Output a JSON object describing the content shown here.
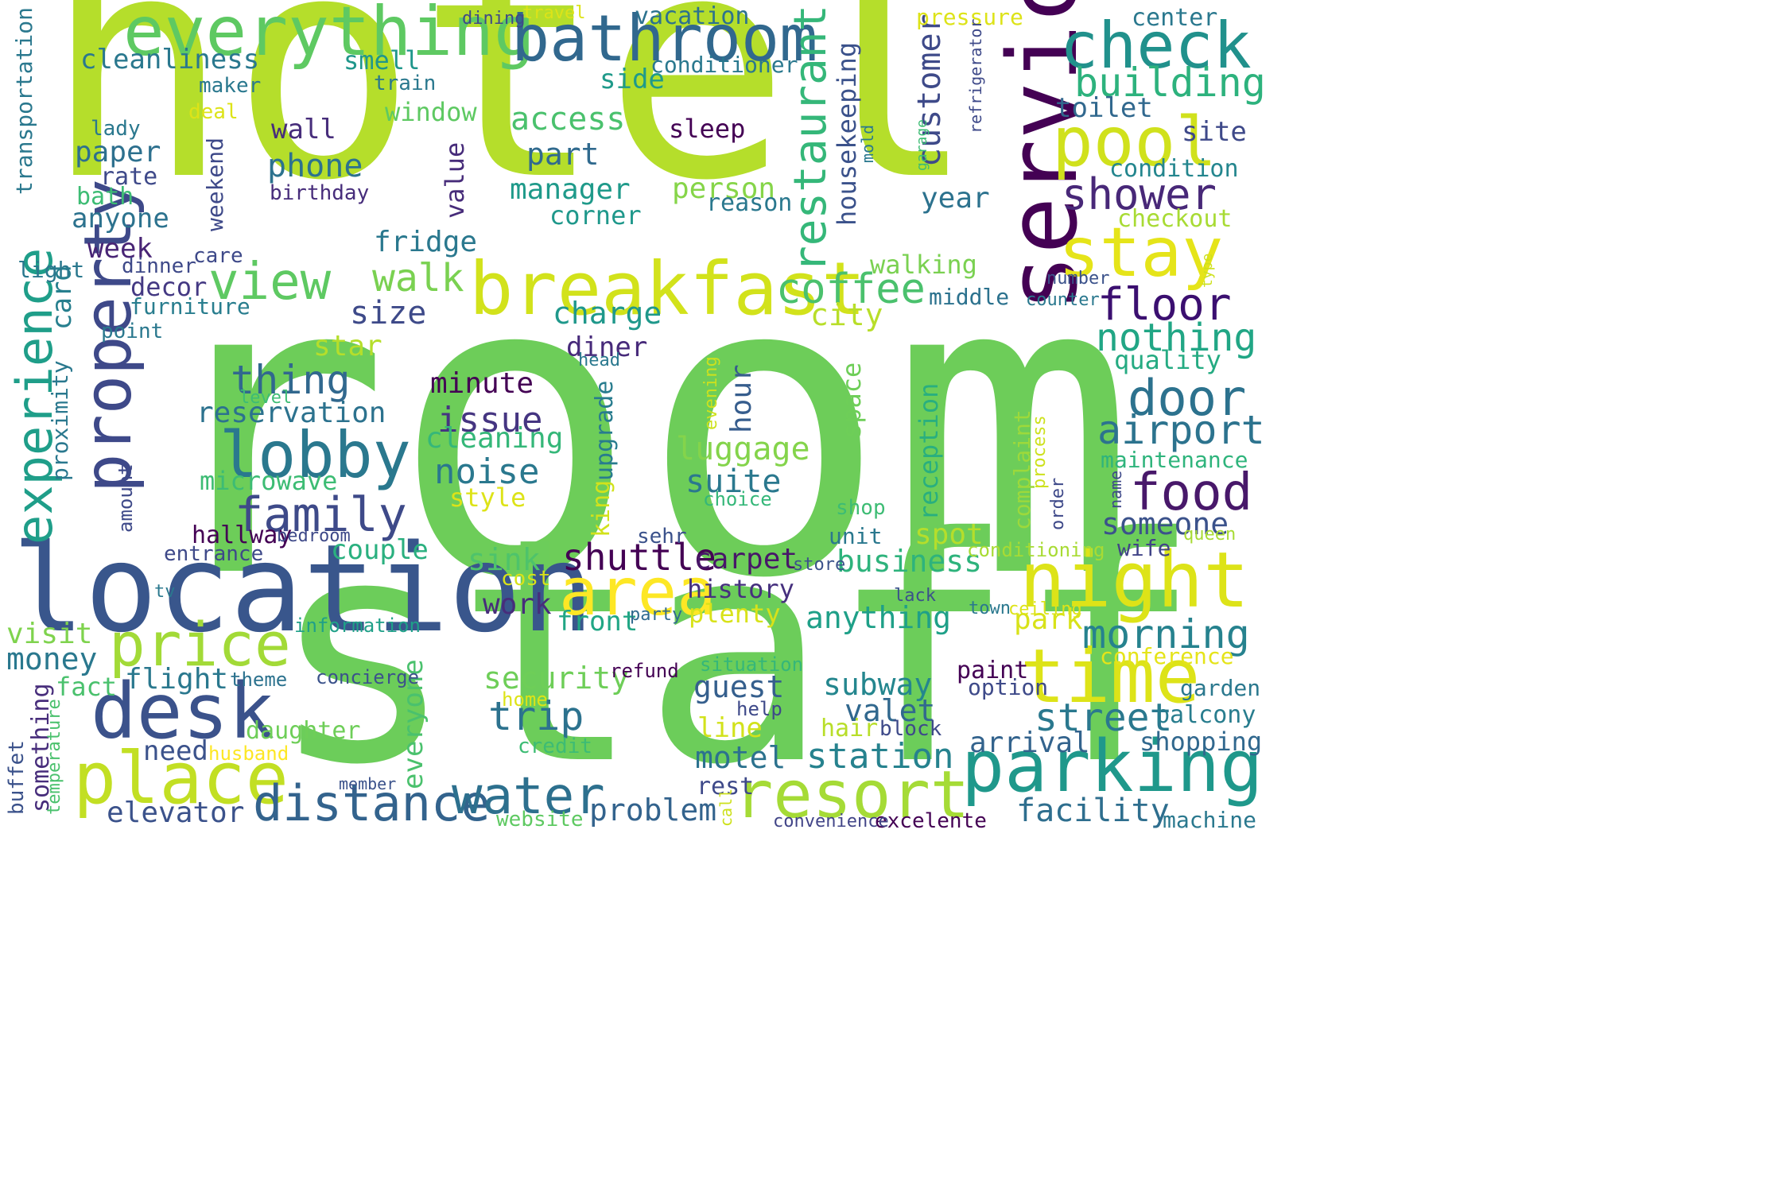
{
  "words": [
    {
      "text": "room",
      "color": "#6dcd59"
    },
    {
      "text": "hotel",
      "color": "#b5de2b"
    },
    {
      "text": "staff",
      "color": "#6ccd5a"
    },
    {
      "text": "location",
      "color": "#39568c"
    },
    {
      "text": "service",
      "color": "#440154"
    },
    {
      "text": "breakfast",
      "color": "#d2e21b"
    },
    {
      "text": "everything",
      "color": "#5ec962"
    },
    {
      "text": "bathroom",
      "color": "#31688e"
    },
    {
      "text": "check",
      "color": "#21918c"
    },
    {
      "text": "pool",
      "color": "#d0e11c"
    },
    {
      "text": "stay",
      "color": "#e5e419"
    },
    {
      "text": "night",
      "color": "#dde318"
    },
    {
      "text": "time",
      "color": "#dde318"
    },
    {
      "text": "parking",
      "color": "#1f988b"
    },
    {
      "text": "resort",
      "color": "#a5db36"
    },
    {
      "text": "area",
      "color": "#fde725"
    },
    {
      "text": "desk",
      "color": "#3b528b"
    },
    {
      "text": "place",
      "color": "#c2df23"
    },
    {
      "text": "price",
      "color": "#a2da37"
    },
    {
      "text": "property",
      "color": "#3e4989"
    },
    {
      "text": "experience",
      "color": "#1f9e89"
    },
    {
      "text": "restaurant",
      "color": "#35b779"
    },
    {
      "text": "view",
      "color": "#5ec962"
    },
    {
      "text": "lobby",
      "color": "#2a788e"
    },
    {
      "text": "family",
      "color": "#3e4a89"
    },
    {
      "text": "distance",
      "color": "#33638d"
    },
    {
      "text": "water",
      "color": "#2d708e"
    },
    {
      "text": "shuttle",
      "color": "#440154"
    },
    {
      "text": "floor",
      "color": "#3b0f70"
    },
    {
      "text": "food",
      "color": "#48186a"
    },
    {
      "text": "door",
      "color": "#2c728e"
    },
    {
      "text": "airport",
      "color": "#2c738e"
    },
    {
      "text": "building",
      "color": "#2db27d"
    },
    {
      "text": "shower",
      "color": "#482878"
    },
    {
      "text": "coffee",
      "color": "#4ac16d"
    },
    {
      "text": "thing",
      "color": "#31688e"
    },
    {
      "text": "nothing",
      "color": "#21a685"
    },
    {
      "text": "morning",
      "color": "#26828e"
    },
    {
      "text": "street",
      "color": "#2a788e"
    },
    {
      "text": "station",
      "color": "#26828e"
    },
    {
      "text": "trip",
      "color": "#2c728e"
    },
    {
      "text": "customer",
      "color": "#3e4a89"
    },
    {
      "text": "housekeeping",
      "color": "#3b528b"
    },
    {
      "text": "reservation",
      "color": "#2c728e"
    },
    {
      "text": "walk",
      "color": "#7ad151"
    },
    {
      "text": "access",
      "color": "#4ac16d"
    },
    {
      "text": "manager",
      "color": "#1f9a8a"
    },
    {
      "text": "phone",
      "color": "#2c728e"
    },
    {
      "text": "cleanliness",
      "color": "#2a788e"
    },
    {
      "text": "smell",
      "color": "#1f968b"
    },
    {
      "text": "window",
      "color": "#5ec962"
    },
    {
      "text": "side",
      "color": "#1f9a8a"
    },
    {
      "text": "toilet",
      "color": "#31688e"
    },
    {
      "text": "part",
      "color": "#306a8e"
    },
    {
      "text": "wall",
      "color": "#472d7b"
    },
    {
      "text": "paper",
      "color": "#2d708e"
    },
    {
      "text": "person",
      "color": "#86d549"
    },
    {
      "text": "site",
      "color": "#3e4989"
    },
    {
      "text": "condition",
      "color": "#24868e"
    },
    {
      "text": "year",
      "color": "#2c728e"
    },
    {
      "text": "value",
      "color": "#472c7a"
    },
    {
      "text": "fridge",
      "color": "#2a788e"
    },
    {
      "text": "size",
      "color": "#3e4a89"
    },
    {
      "text": "charge",
      "color": "#1f988b"
    },
    {
      "text": "city",
      "color": "#b8de29"
    },
    {
      "text": "walking",
      "color": "#7ad151"
    },
    {
      "text": "checkout",
      "color": "#a8db34"
    },
    {
      "text": "minute",
      "color": "#440154"
    },
    {
      "text": "issue",
      "color": "#453581"
    },
    {
      "text": "noise",
      "color": "#2a788e"
    },
    {
      "text": "cleaning",
      "color": "#35b779"
    },
    {
      "text": "luggage",
      "color": "#84d44b"
    },
    {
      "text": "suite",
      "color": "#2a788e"
    },
    {
      "text": "hour",
      "color": "#365d8d"
    },
    {
      "text": "space",
      "color": "#6ece58"
    },
    {
      "text": "microwave",
      "color": "#3dbc74"
    },
    {
      "text": "upgrade",
      "color": "#287c8e"
    },
    {
      "text": "king",
      "color": "#d2e21b"
    },
    {
      "text": "star",
      "color": "#b5de2b"
    },
    {
      "text": "diner",
      "color": "#472a7a"
    },
    {
      "text": "quality",
      "color": "#25ab82"
    },
    {
      "text": "someone",
      "color": "#3b528b"
    },
    {
      "text": "maintenance",
      "color": "#2fb47c"
    },
    {
      "text": "reception",
      "color": "#29af7f"
    },
    {
      "text": "complaint",
      "color": "#9dd93b"
    },
    {
      "text": "wife",
      "color": "#414487"
    },
    {
      "text": "week",
      "color": "#482475"
    },
    {
      "text": "decor",
      "color": "#443983"
    },
    {
      "text": "card",
      "color": "#277f8e"
    },
    {
      "text": "furniture",
      "color": "#287d8e"
    },
    {
      "text": "couple",
      "color": "#2ab07f"
    },
    {
      "text": "hallway",
      "color": "#440154"
    },
    {
      "text": "sink",
      "color": "#4ec36b"
    },
    {
      "text": "carpet",
      "color": "#481769"
    },
    {
      "text": "business",
      "color": "#2eb37c"
    },
    {
      "text": "spot",
      "color": "#b5de2b"
    },
    {
      "text": "history",
      "color": "#46307e"
    },
    {
      "text": "anything",
      "color": "#1fa088"
    },
    {
      "text": "park",
      "color": "#d8e219"
    },
    {
      "text": "plenty",
      "color": "#d8e219"
    },
    {
      "text": "front",
      "color": "#21a685"
    },
    {
      "text": "work",
      "color": "#472d7b"
    },
    {
      "text": "security",
      "color": "#6ece58"
    },
    {
      "text": "subway",
      "color": "#24868e"
    },
    {
      "text": "guest",
      "color": "#355f8d"
    },
    {
      "text": "valet",
      "color": "#31688e"
    },
    {
      "text": "line",
      "color": "#d2e21b"
    },
    {
      "text": "motel",
      "color": "#2c728e"
    },
    {
      "text": "arrival",
      "color": "#33638d"
    },
    {
      "text": "shopping",
      "color": "#31688e"
    },
    {
      "text": "balcony",
      "color": "#287d8e"
    },
    {
      "text": "garden",
      "color": "#2a788e"
    },
    {
      "text": "facility",
      "color": "#2e6e8e"
    },
    {
      "text": "problem",
      "color": "#33638d"
    },
    {
      "text": "elevator",
      "color": "#3b528b"
    },
    {
      "text": "visit",
      "color": "#7fd34e"
    },
    {
      "text": "money",
      "color": "#2a788e"
    },
    {
      "text": "flight",
      "color": "#2a788e"
    },
    {
      "text": "need",
      "color": "#3b528b"
    },
    {
      "text": "daughter",
      "color": "#6ece58"
    },
    {
      "text": "something",
      "color": "#472d7b"
    },
    {
      "text": "everyone",
      "color": "#4ac16d"
    },
    {
      "text": "fact",
      "color": "#4ac16d"
    },
    {
      "text": "hair",
      "color": "#b8de29"
    },
    {
      "text": "paint",
      "color": "#440154"
    },
    {
      "text": "option",
      "color": "#3e4a89"
    },
    {
      "text": "conference",
      "color": "#e5e419"
    },
    {
      "text": "machine",
      "color": "#2a788e"
    },
    {
      "text": "block",
      "color": "#3e4a89"
    },
    {
      "text": "excelente",
      "color": "#440154"
    },
    {
      "text": "convenience",
      "color": "#414487"
    },
    {
      "text": "website",
      "color": "#5ec962"
    },
    {
      "text": "credit",
      "color": "#3dbc74"
    },
    {
      "text": "rest",
      "color": "#3e4989"
    },
    {
      "text": "call",
      "color": "#cde11d"
    },
    {
      "text": "member",
      "color": "#3b528b"
    },
    {
      "text": "buffet",
      "color": "#3b528b"
    },
    {
      "text": "temperature",
      "color": "#4ac16d"
    },
    {
      "text": "husband",
      "color": "#fde725"
    },
    {
      "text": "theme",
      "color": "#2c728e"
    },
    {
      "text": "concierge",
      "color": "#3b528b"
    },
    {
      "text": "refund",
      "color": "#440154"
    },
    {
      "text": "situation",
      "color": "#35b779"
    },
    {
      "text": "help",
      "color": "#3e4989"
    },
    {
      "text": "home",
      "color": "#dde318"
    },
    {
      "text": "party",
      "color": "#306a8e"
    },
    {
      "text": "lack",
      "color": "#3b528b"
    },
    {
      "text": "town",
      "color": "#2a788e"
    },
    {
      "text": "ceiling",
      "color": "#dde318"
    },
    {
      "text": "information",
      "color": "#1fa088"
    },
    {
      "text": "cost",
      "color": "#d8e219"
    },
    {
      "text": "tv",
      "color": "#2a788e"
    },
    {
      "text": "entrance",
      "color": "#3e4989"
    },
    {
      "text": "bedroom",
      "color": "#3e4989"
    },
    {
      "text": "sehr",
      "color": "#3b528b"
    },
    {
      "text": "store",
      "color": "#3b528b"
    },
    {
      "text": "unit",
      "color": "#2a788e"
    },
    {
      "text": "shop",
      "color": "#3dbc74"
    },
    {
      "text": "conditioning",
      "color": "#a8db34"
    },
    {
      "text": "queen",
      "color": "#a8db34"
    },
    {
      "text": "name",
      "color": "#3e4989"
    },
    {
      "text": "order",
      "color": "#3e4989"
    },
    {
      "text": "process",
      "color": "#cde11d"
    },
    {
      "text": "style",
      "color": "#dde318"
    },
    {
      "text": "choice",
      "color": "#35b779"
    },
    {
      "text": "evening",
      "color": "#cde11d"
    },
    {
      "text": "head",
      "color": "#2a788e"
    },
    {
      "text": "level",
      "color": "#3dbc74"
    },
    {
      "text": "proximity",
      "color": "#2a788e"
    },
    {
      "text": "amount",
      "color": "#3e4989"
    },
    {
      "text": "point",
      "color": "#2a788e"
    },
    {
      "text": "dinner",
      "color": "#3e4989"
    },
    {
      "text": "light",
      "color": "#2a788e"
    },
    {
      "text": "care",
      "color": "#3e4989"
    },
    {
      "text": "weekend",
      "color": "#3e4989"
    },
    {
      "text": "birthday",
      "color": "#472d7b"
    },
    {
      "text": "reason",
      "color": "#2a788e"
    },
    {
      "text": "corner",
      "color": "#1f988b"
    },
    {
      "text": "sleep",
      "color": "#440154"
    },
    {
      "text": "rate",
      "color": "#3e4989"
    },
    {
      "text": "bath",
      "color": "#3dbc74"
    },
    {
      "text": "anyone",
      "color": "#2c728e"
    },
    {
      "text": "lady",
      "color": "#2a788e"
    },
    {
      "text": "deal",
      "color": "#dde318"
    },
    {
      "text": "maker",
      "color": "#2a788e"
    },
    {
      "text": "transportation",
      "color": "#2a788e"
    },
    {
      "text": "train",
      "color": "#2a788e"
    },
    {
      "text": "conditioner",
      "color": "#2a788e"
    },
    {
      "text": "vacation",
      "color": "#2c728e"
    },
    {
      "text": "travel",
      "color": "#dde318"
    },
    {
      "text": "dining",
      "color": "#3e4989"
    },
    {
      "text": "pressure",
      "color": "#dde318"
    },
    {
      "text": "center",
      "color": "#2a788e"
    },
    {
      "text": "refrigerator",
      "color": "#3e4989"
    },
    {
      "text": "garage",
      "color": "#3dbc74"
    },
    {
      "text": "mold",
      "color": "#2a788e"
    },
    {
      "text": "number",
      "color": "#3b528b"
    },
    {
      "text": "type",
      "color": "#cde11d"
    },
    {
      "text": "counter",
      "color": "#2a788e"
    },
    {
      "text": "middle",
      "color": "#2c728e"
    }
  ]
}
